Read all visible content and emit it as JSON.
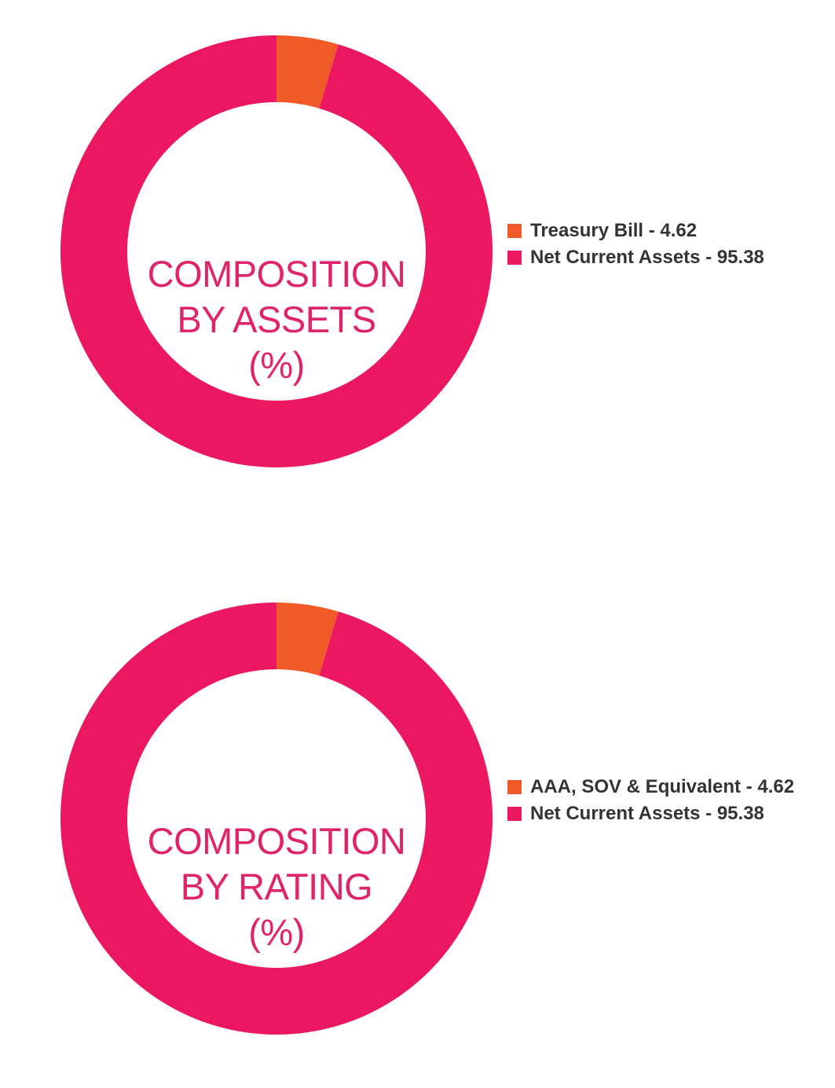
{
  "chart_data": [
    {
      "type": "pie",
      "donut": true,
      "title_lines": [
        "COMPOSITION",
        "BY ASSETS",
        "(%)"
      ],
      "categories": [
        "Treasury Bill - 4.62",
        "Net Current Assets - 95.38"
      ],
      "values": [
        4.62,
        95.38
      ],
      "colors": [
        "#f05a28",
        "#ec1761"
      ],
      "legend_position": "right"
    },
    {
      "type": "pie",
      "donut": true,
      "title_lines": [
        "COMPOSITION",
        "BY RATING",
        "(%)"
      ],
      "categories": [
        "AAA, SOV & Equivalent - 4.62",
        "Net Current Assets - 95.38"
      ],
      "values": [
        4.62,
        95.38
      ],
      "colors": [
        "#f05a28",
        "#ec1761"
      ],
      "legend_position": "right"
    }
  ]
}
